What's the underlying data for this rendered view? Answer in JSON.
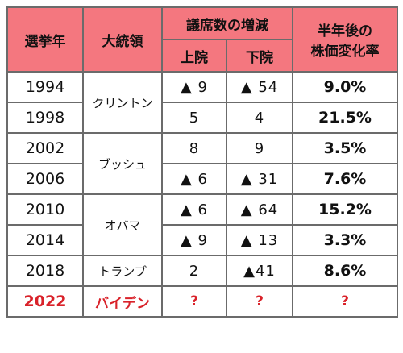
{
  "headers": {
    "year": "選挙年",
    "president": "大統領",
    "seats": "議席数の増減",
    "upper": "上院",
    "lower": "下院",
    "change_line1": "半年後の",
    "change_line2": "株価変化率"
  },
  "rows": [
    {
      "year": "1994",
      "upper": "▲ 9",
      "lower": "▲ 54",
      "change": "9.0%"
    },
    {
      "year": "1998",
      "upper": "5",
      "lower": "4",
      "change": "21.5%"
    },
    {
      "year": "2002",
      "upper": "8",
      "lower": "9",
      "change": "3.5%"
    },
    {
      "year": "2006",
      "upper": "▲ 6",
      "lower": "▲ 31",
      "change": "7.6%"
    },
    {
      "year": "2010",
      "upper": "▲ 6",
      "lower": "▲ 64",
      "change": "15.2%"
    },
    {
      "year": "2014",
      "upper": "▲ 9",
      "lower": "▲ 13",
      "change": "3.3%"
    },
    {
      "year": "2018",
      "upper": "2",
      "lower": "▲41",
      "change": "8.6%"
    }
  ],
  "presidents": [
    "クリントン",
    "ブッシュ",
    "オバマ",
    "トランプ"
  ],
  "last_row": {
    "year": "2022",
    "president": "バイデン",
    "upper": "?",
    "lower": "?",
    "change": "?"
  },
  "colors": {
    "header_bg": "#f4777f",
    "highlight_text": "#d9222a",
    "border": "#6b6b6b"
  }
}
